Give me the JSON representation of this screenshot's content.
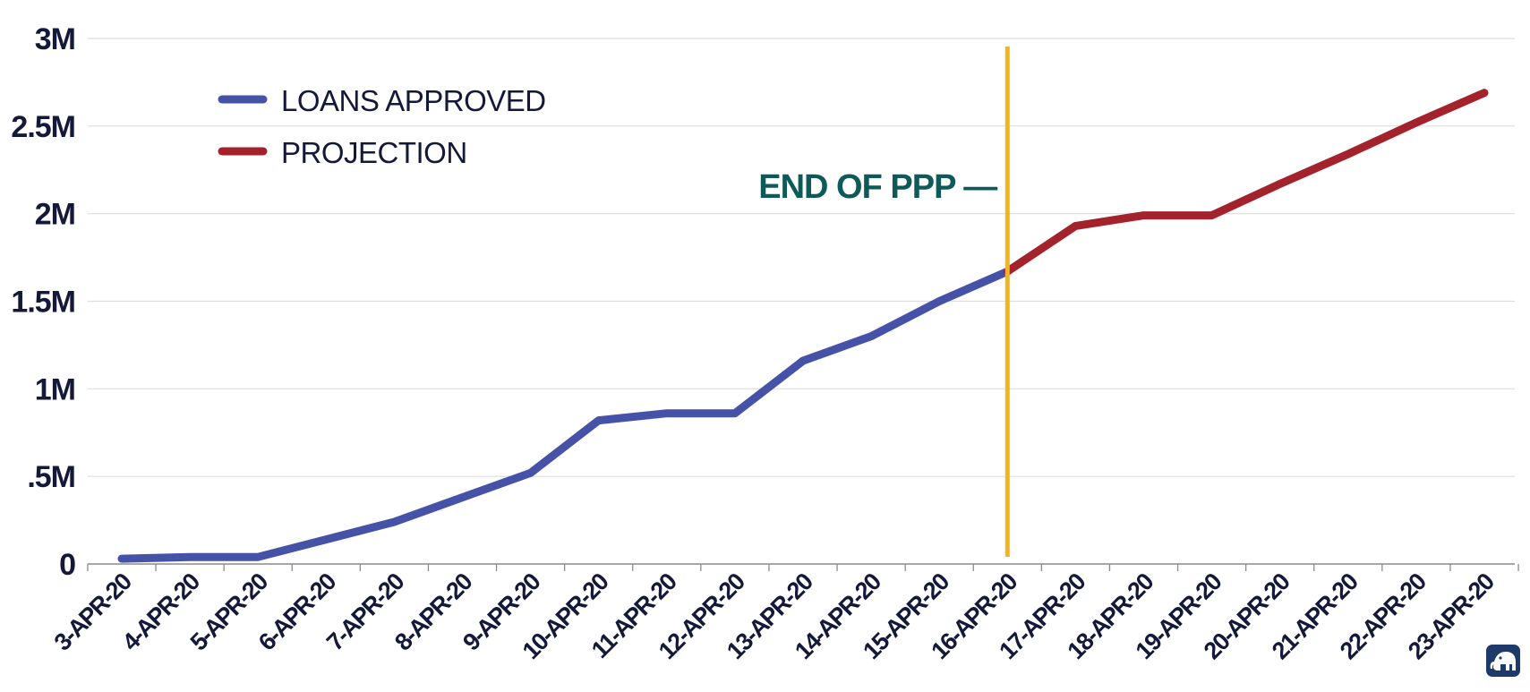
{
  "chart_data": {
    "type": "line",
    "title": "",
    "xlabel": "",
    "ylabel": "",
    "categories": [
      "3-APR-20",
      "4-APR-20",
      "5-APR-20",
      "6-APR-20",
      "7-APR-20",
      "8-APR-20",
      "9-APR-20",
      "10-APR-20",
      "11-APR-20",
      "12-APR-20",
      "13-APR-20",
      "14-APR-20",
      "15-APR-20",
      "16-APR-20",
      "17-APR-20",
      "18-APR-20",
      "19-APR-20",
      "20-APR-20",
      "21-APR-20",
      "22-APR-20",
      "23-APR-20"
    ],
    "yticks": [
      0,
      500000,
      1000000,
      1500000,
      2000000,
      2500000,
      3000000
    ],
    "ytick_labels": [
      "0",
      ".5M",
      "1M",
      "1.5M",
      "2M",
      "2.5M",
      "3M"
    ],
    "ylim": [
      0,
      3000000
    ],
    "grid": true,
    "legend_position": "top-left",
    "series": [
      {
        "name": "LOANS APPROVED",
        "color": "#4651A8",
        "values": [
          30000,
          40000,
          40000,
          140000,
          240000,
          380000,
          520000,
          820000,
          860000,
          860000,
          1160000,
          1300000,
          1500000,
          1670000,
          null,
          null,
          null,
          null,
          null,
          null,
          null
        ]
      },
      {
        "name": "PROJECTION",
        "color": "#A3222B",
        "values": [
          null,
          null,
          null,
          null,
          null,
          null,
          null,
          null,
          null,
          null,
          null,
          null,
          null,
          1670000,
          1930000,
          1990000,
          1990000,
          2170000,
          2340000,
          2520000,
          2690000
        ]
      }
    ],
    "annotations": [
      {
        "text": "END OF PPP —",
        "at_category": "16-APR-20",
        "type": "vertical-line",
        "line_color": "#F2B51E",
        "text_color": "#0E5A58"
      }
    ]
  },
  "colors": {
    "text": "#14193A",
    "grid": "#DEDEDE",
    "axis": "#8C8C8C",
    "logo": "#1D3A6B"
  },
  "logo": {
    "icon": "elephant-icon"
  }
}
